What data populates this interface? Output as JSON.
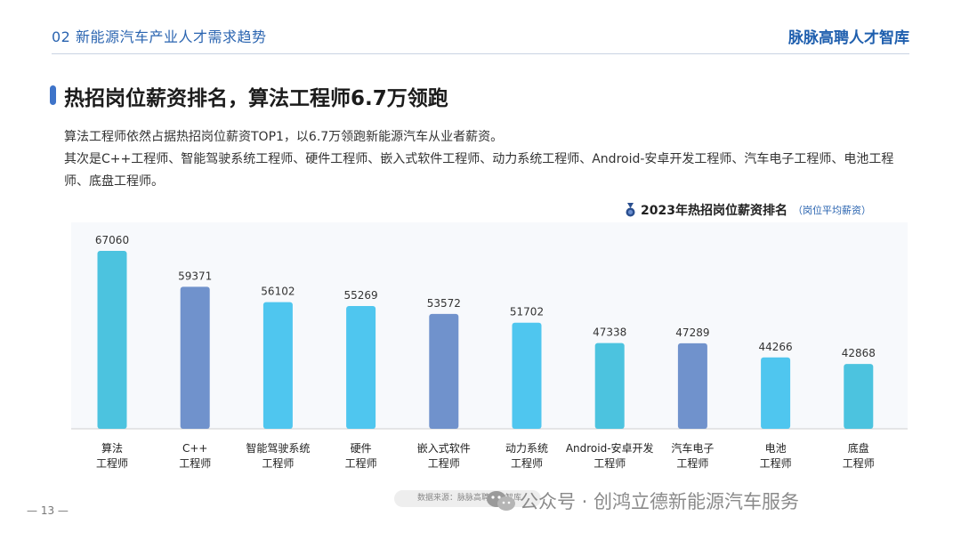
{
  "header": {
    "section": "02 新能源汽车产业人才需求趋势",
    "brand": "脉脉高聘人才智库"
  },
  "title": "热招岗位薪资排名，算法工程师6.7万领跑",
  "intro": {
    "line1": "算法工程师依然占据热招岗位薪资TOP1，以6.7万领跑新能源汽车从业者薪资。",
    "line2": "其次是C++工程师、智能驾驶系统工程师、硬件工程师、嵌入式软件工程师、动力系统工程师、Android-安卓开发工程师、汽车电子工程师、电池工程师、底盘工程师。"
  },
  "chart_data": {
    "type": "bar",
    "title": "2023年热招岗位薪资排名",
    "note": "（岗位平均薪资）",
    "ylim": [
      0,
      70000
    ],
    "categories": [
      [
        "算法",
        "工程师"
      ],
      [
        "C++",
        "工程师"
      ],
      [
        "智能驾驶系统",
        "工程师"
      ],
      [
        "硬件",
        "工程师"
      ],
      [
        "嵌入式软件",
        "工程师"
      ],
      [
        "动力系统",
        "工程师"
      ],
      [
        "Android-安卓开发",
        "工程师"
      ],
      [
        "汽车电子",
        "工程师"
      ],
      [
        "电池",
        "工程师"
      ],
      [
        "底盘",
        "工程师"
      ]
    ],
    "values": [
      67060,
      59371,
      56102,
      55269,
      53572,
      51702,
      47338,
      47289,
      44266,
      42868
    ],
    "colors": [
      "#4cc3df",
      "#7092cc",
      "#4fc6ef",
      "#4fc6ef",
      "#7092cc",
      "#4fc6ef",
      "#4cc3df",
      "#7092cc",
      "#4fc6ef",
      "#4cc3df"
    ]
  },
  "footer": {
    "page": "— 13 —",
    "source": "数据来源：脉脉高聘人才智库",
    "watermark": "公众号 · 创鸿立德新能源汽车服务"
  }
}
